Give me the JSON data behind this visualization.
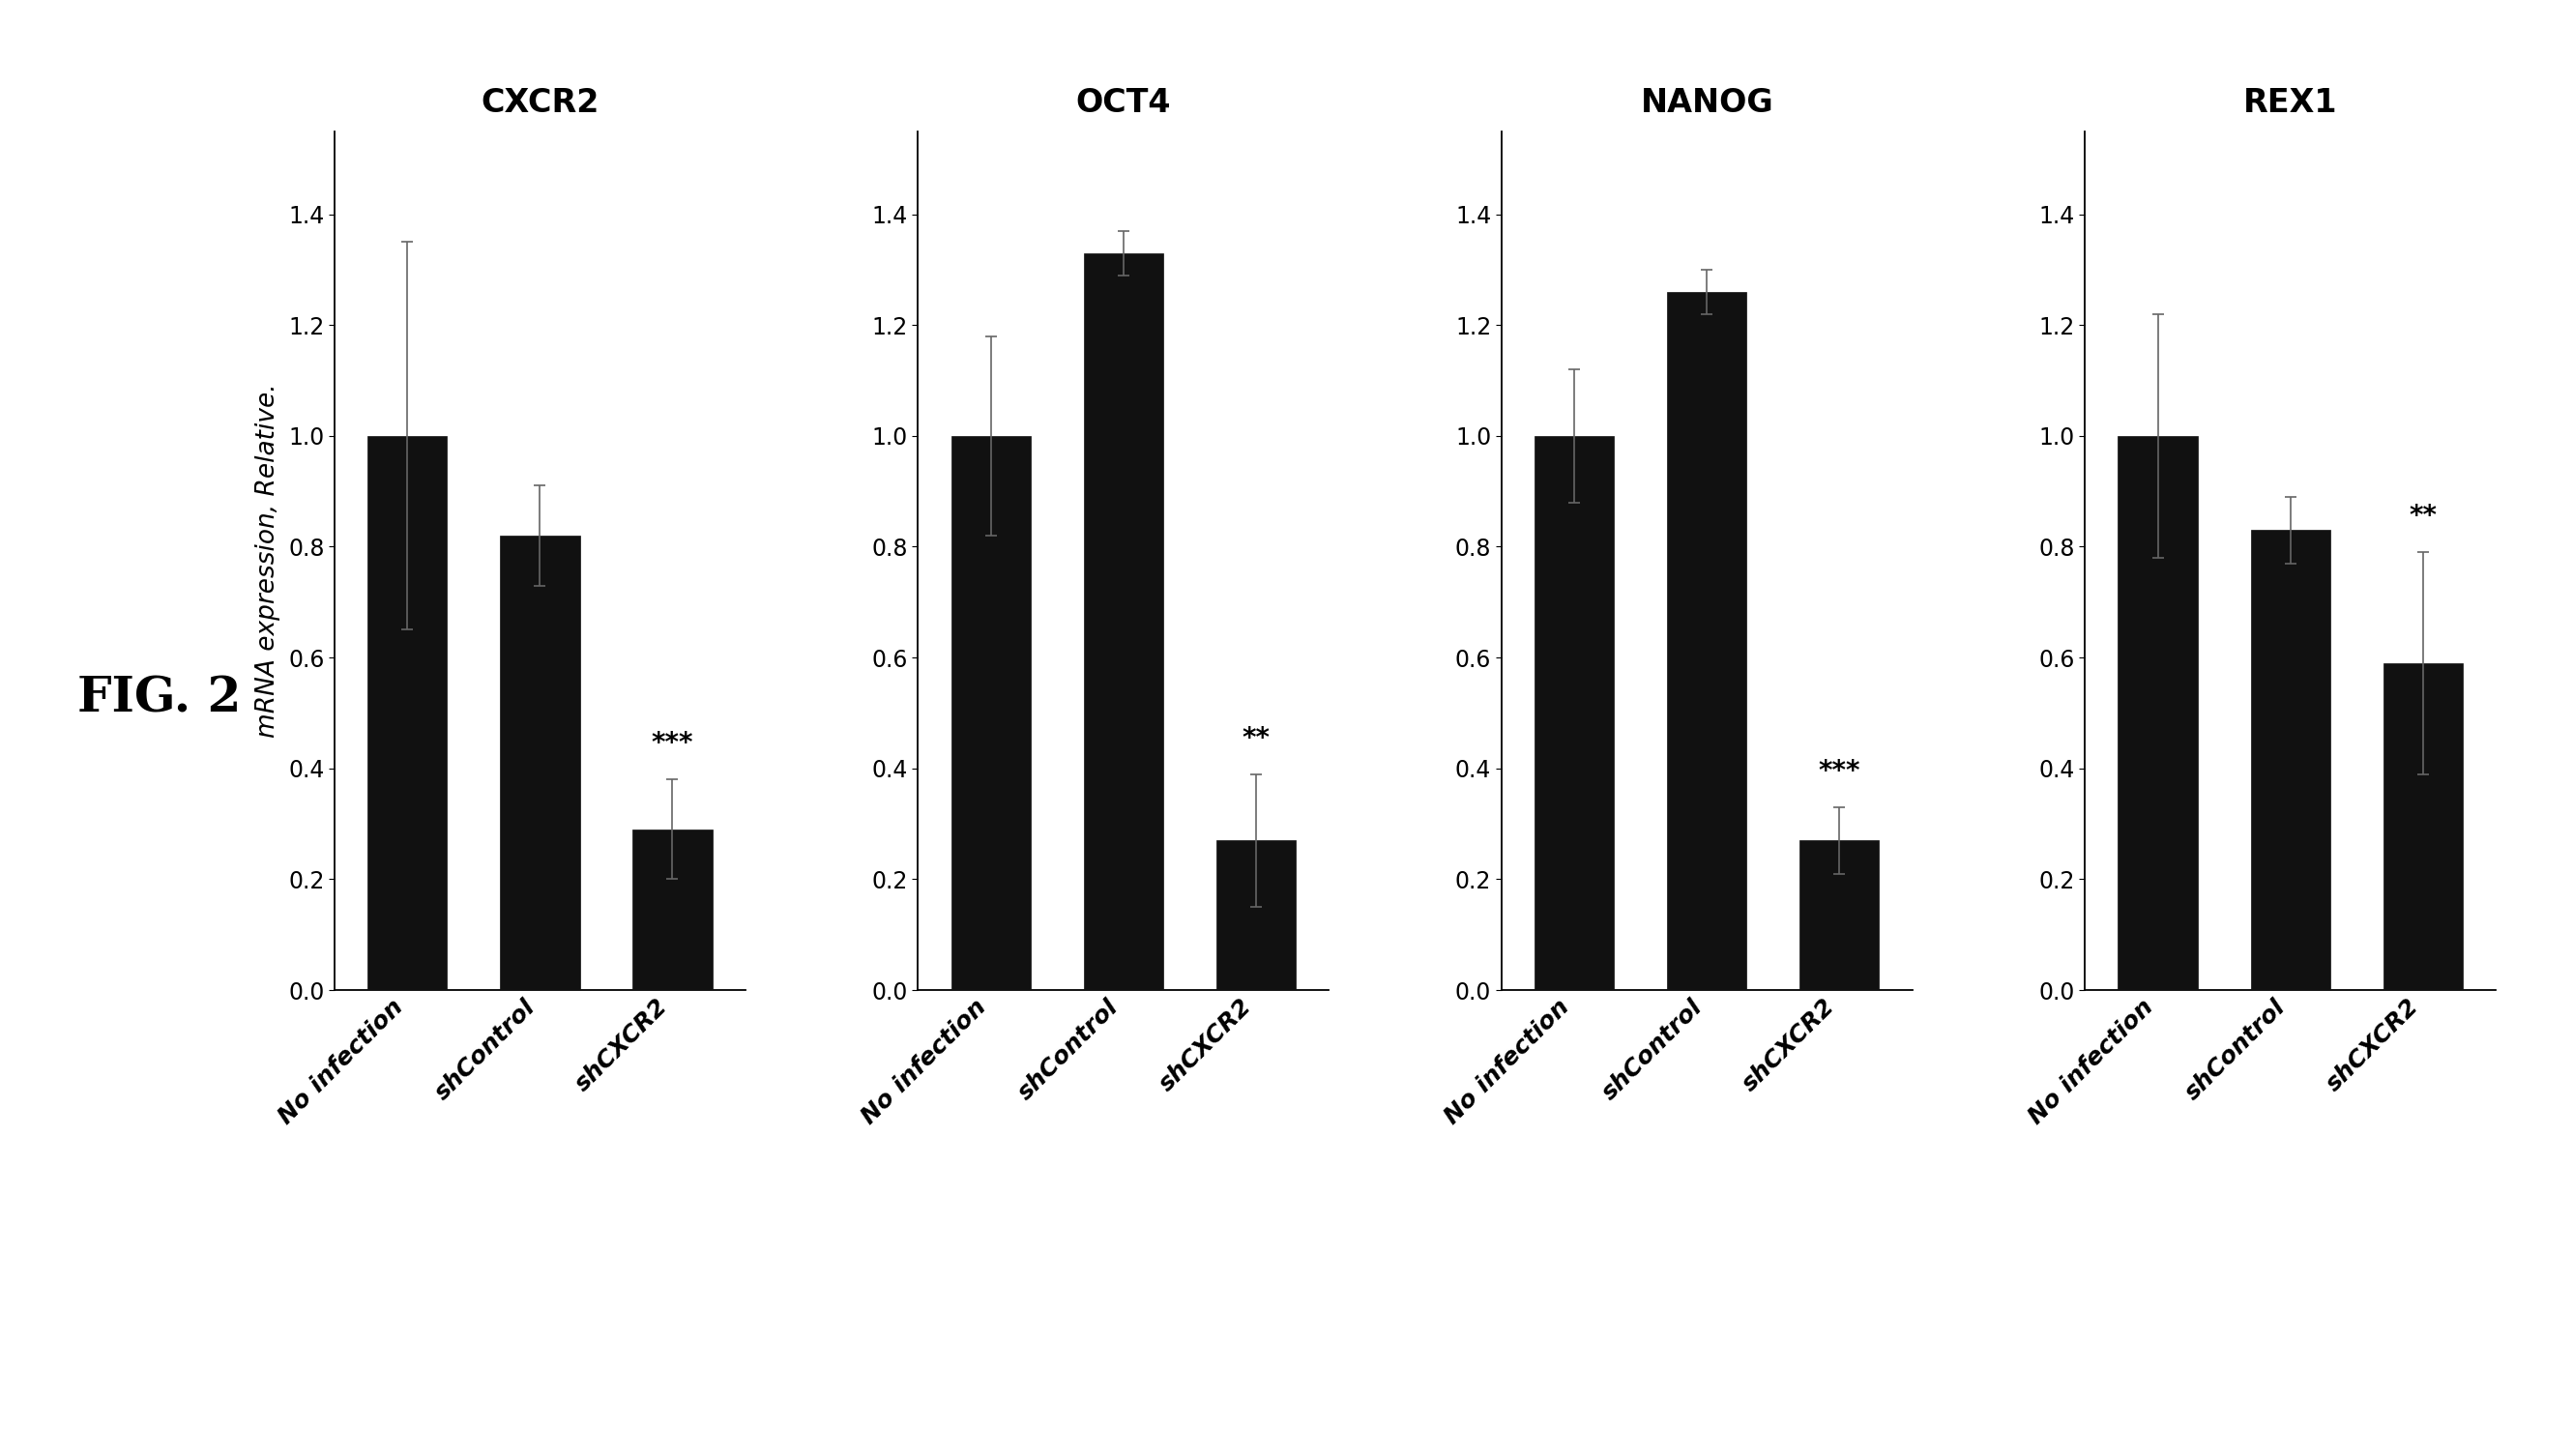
{
  "genes": [
    "CXCR2",
    "OCT4",
    "NANOG",
    "REX1"
  ],
  "categories": [
    "No infection",
    "shControl",
    "shCXCR2"
  ],
  "values": {
    "CXCR2": [
      1.0,
      0.82,
      0.29
    ],
    "OCT4": [
      1.0,
      1.33,
      0.27
    ],
    "NANOG": [
      1.0,
      1.26,
      0.27
    ],
    "REX1": [
      1.0,
      0.83,
      0.59
    ]
  },
  "errors": {
    "CXCR2": [
      0.35,
      0.09,
      0.09
    ],
    "OCT4": [
      0.18,
      0.04,
      0.12
    ],
    "NANOG": [
      0.12,
      0.04,
      0.06
    ],
    "REX1": [
      0.22,
      0.06,
      0.2
    ]
  },
  "significance": {
    "CXCR2": [
      "",
      "",
      "***"
    ],
    "OCT4": [
      "",
      "",
      "**"
    ],
    "NANOG": [
      "",
      "",
      "***"
    ],
    "REX1": [
      "",
      "",
      "**"
    ]
  },
  "bar_color": "#111111",
  "background_color": "#ffffff",
  "ylabel": "mRNA expression, Relative.",
  "ylim": [
    0,
    1.55
  ],
  "yticks": [
    0,
    0.2,
    0.4,
    0.6,
    0.8,
    1.0,
    1.2,
    1.4
  ],
  "fig_label": "FIG. 2",
  "bar_width": 0.6,
  "title_fontsize": 24,
  "tick_fontsize": 17,
  "ylabel_fontsize": 19,
  "sig_fontsize": 20,
  "fig_label_fontsize": 36,
  "xtick_fontsize": 18
}
